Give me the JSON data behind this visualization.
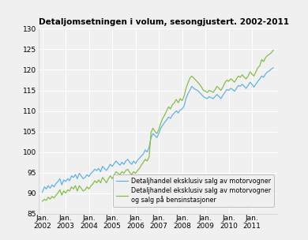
{
  "title": "Detaljomsetningen i volum, sesongjustert. 2002-2011",
  "ylim": [
    85,
    130
  ],
  "yticks": [
    85,
    90,
    95,
    100,
    105,
    110,
    115,
    120,
    125,
    130
  ],
  "xlabel_labels": [
    "Jan.\n2002",
    "Jan.\n2003",
    "Jan.\n2004",
    "Jan.\n2005",
    "Jan.\n2006",
    "Jan.\n2007",
    "Jan.\n2008",
    "Jan.\n2009",
    "Jan.\n2010",
    "Jan.\n2011"
  ],
  "legend1": "Detaljhandel eksklusiv salg av motorvogner",
  "legend2": "Detaljhandel eksklusiv salg av motorvogner\nog salg på bensinstasjoner",
  "color_blue": "#5baee0",
  "color_green": "#82b944",
  "plot_bg": "#f0f0f0",
  "fig_bg": "#f0f0f0",
  "grid_color": "#ffffff",
  "blue_series": [
    90.2,
    91.5,
    91.0,
    91.8,
    91.2,
    92.0,
    91.5,
    92.3,
    92.8,
    93.5,
    92.0,
    93.2,
    92.8,
    93.5,
    93.0,
    94.2,
    93.8,
    94.5,
    93.5,
    94.8,
    94.2,
    93.5,
    93.8,
    94.5,
    94.0,
    94.8,
    95.2,
    95.8,
    95.5,
    96.0,
    95.2,
    96.5,
    96.0,
    95.5,
    96.2,
    97.0,
    96.5,
    97.2,
    97.8,
    97.2,
    96.8,
    97.5,
    97.0,
    97.8,
    98.2,
    97.5,
    97.0,
    97.8,
    97.2,
    98.0,
    98.5,
    99.0,
    99.5,
    100.5,
    100.0,
    101.2,
    103.5,
    104.5,
    104.0,
    103.5,
    104.5,
    105.8,
    106.5,
    107.2,
    107.8,
    108.5,
    108.2,
    109.0,
    109.5,
    110.0,
    109.5,
    110.2,
    110.5,
    111.2,
    113.0,
    114.2,
    115.0,
    116.0,
    115.5,
    115.2,
    115.0,
    114.5,
    114.0,
    113.5,
    113.2,
    113.0,
    113.5,
    113.2,
    113.0,
    113.5,
    114.0,
    113.5,
    113.0,
    113.8,
    114.5,
    115.2,
    115.0,
    115.5,
    115.2,
    114.8,
    115.5,
    116.2,
    116.0,
    116.5,
    116.0,
    115.5,
    116.2,
    117.0,
    116.5,
    115.8,
    116.5,
    117.2,
    117.8,
    118.5,
    118.2,
    119.0,
    119.5,
    119.8,
    120.2,
    120.5
  ],
  "green_series": [
    88.0,
    88.5,
    88.2,
    89.0,
    88.5,
    89.2,
    88.8,
    89.5,
    90.0,
    90.8,
    89.5,
    90.5,
    90.0,
    90.8,
    90.5,
    91.5,
    91.0,
    91.8,
    90.5,
    91.8,
    91.2,
    90.5,
    90.8,
    91.5,
    91.0,
    91.8,
    92.2,
    93.0,
    92.5,
    93.2,
    92.5,
    93.8,
    93.2,
    92.5,
    93.5,
    94.2,
    93.5,
    94.5,
    95.2,
    94.8,
    94.5,
    95.2,
    94.8,
    95.5,
    95.8,
    95.0,
    94.5,
    95.2,
    94.8,
    95.5,
    96.0,
    96.8,
    97.5,
    98.2,
    97.8,
    98.8,
    104.8,
    105.8,
    105.0,
    104.5,
    105.5,
    107.0,
    108.2,
    109.0,
    110.0,
    111.0,
    110.5,
    111.5,
    112.0,
    112.8,
    112.0,
    113.0,
    112.5,
    113.5,
    115.5,
    116.8,
    118.0,
    118.5,
    118.0,
    117.5,
    117.0,
    116.5,
    115.8,
    115.0,
    114.8,
    114.5,
    115.0,
    114.8,
    114.5,
    115.2,
    116.0,
    115.5,
    115.0,
    115.8,
    116.8,
    117.5,
    117.2,
    117.8,
    117.5,
    117.0,
    117.8,
    118.5,
    118.2,
    118.8,
    118.2,
    117.8,
    118.5,
    119.5,
    119.0,
    118.5,
    119.5,
    120.5,
    121.0,
    122.5,
    122.0,
    123.0,
    123.5,
    123.8,
    124.2,
    124.8
  ]
}
